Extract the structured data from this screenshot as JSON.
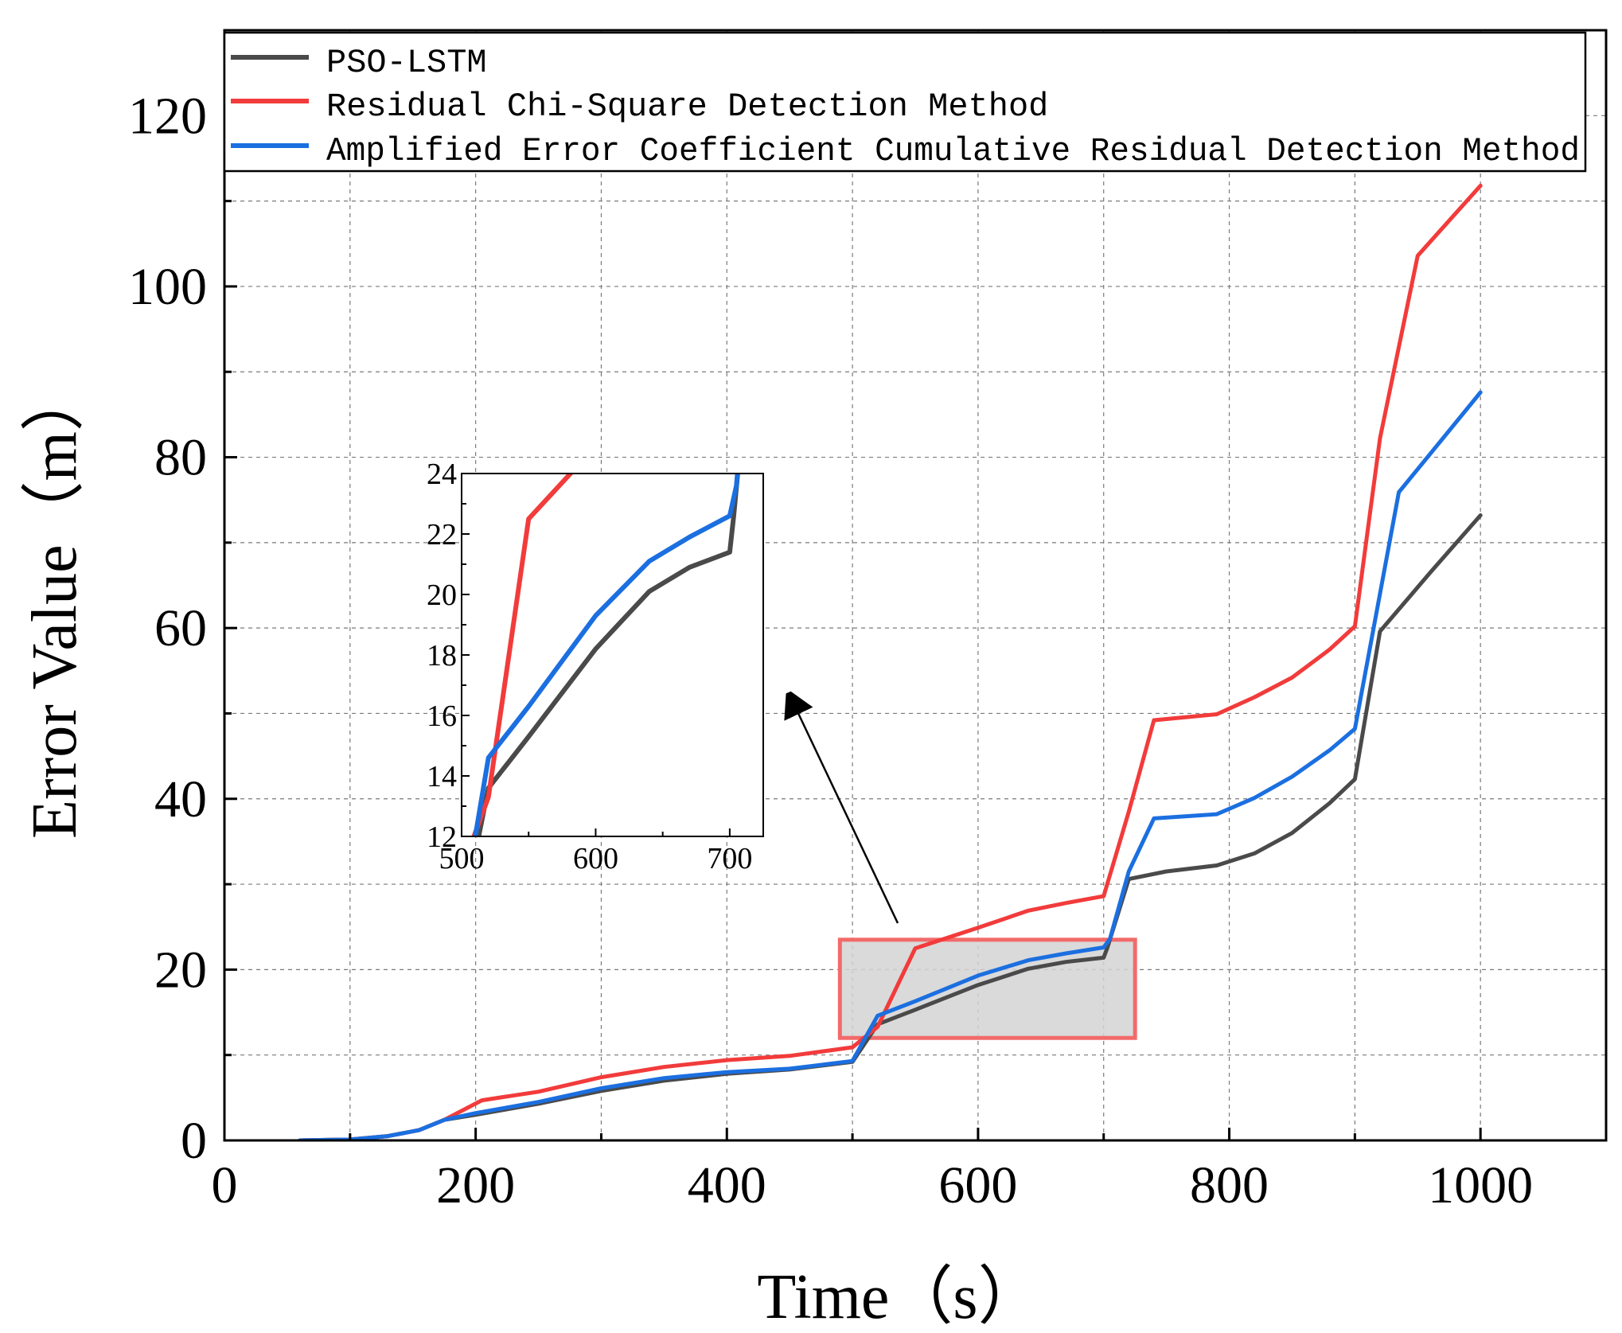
{
  "chart_data": {
    "type": "line",
    "xlabel": "Time（s）",
    "ylabel": "Error Value（m）",
    "xlim": [
      0,
      1100
    ],
    "ylim": [
      0,
      130
    ],
    "x_ticks": [
      0,
      200,
      400,
      600,
      800,
      1000
    ],
    "y_ticks": [
      0,
      20,
      40,
      60,
      80,
      100,
      120
    ],
    "grid": true,
    "legend_position": "top-left",
    "colors": {
      "PSO-LSTM": "#4a4a4a",
      "Residual Chi-Square Detection Method": "#f23b3b",
      "Amplified Error Coefficient Cumulative Residual Detection Method": "#1b6fe0"
    },
    "series": [
      {
        "name": "PSO-LSTM",
        "x": [
          60,
          100,
          130,
          155,
          175,
          200,
          250,
          300,
          350,
          400,
          450,
          500,
          520,
          550,
          600,
          640,
          670,
          700,
          703,
          720,
          750,
          790,
          820,
          850,
          880,
          900,
          920,
          960,
          1000
        ],
        "y": [
          0,
          0.1,
          0.5,
          1.2,
          2.4,
          3.0,
          4.3,
          5.8,
          7.0,
          7.8,
          8.3,
          9.2,
          13.6,
          15.3,
          18.2,
          20.1,
          20.9,
          21.4,
          22.6,
          30.6,
          31.5,
          32.2,
          33.6,
          36,
          39.5,
          42.3,
          59.6,
          66.5,
          73.2
        ]
      },
      {
        "name": "Residual Chi-Square Detection Method",
        "x": [
          60,
          100,
          130,
          155,
          175,
          205,
          250,
          300,
          350,
          400,
          450,
          500,
          520,
          550,
          600,
          640,
          670,
          700,
          720,
          740,
          790,
          820,
          850,
          880,
          900,
          920,
          950,
          1000
        ],
        "y": [
          0,
          0.1,
          0.5,
          1.2,
          2.4,
          4.7,
          5.7,
          7.4,
          8.6,
          9.4,
          9.9,
          10.9,
          13.3,
          22.5,
          24.9,
          26.9,
          27.8,
          28.6,
          38.5,
          49.2,
          49.9,
          51.9,
          54.2,
          57.5,
          60.2,
          82.2,
          103.6,
          111.8
        ]
      },
      {
        "name": "Amplified Error Coefficient Cumulative Residual Detection Method",
        "x": [
          60,
          100,
          130,
          155,
          175,
          200,
          250,
          300,
          350,
          400,
          450,
          500,
          520,
          550,
          600,
          640,
          670,
          700,
          705,
          720,
          740,
          790,
          820,
          850,
          880,
          900,
          935,
          1000
        ],
        "y": [
          0,
          0.1,
          0.5,
          1.2,
          2.4,
          3.2,
          4.5,
          6.1,
          7.3,
          8.0,
          8.4,
          9.3,
          14.6,
          16.3,
          19.3,
          21.1,
          21.9,
          22.6,
          23.6,
          31.5,
          37.7,
          38.2,
          40.1,
          42.6,
          45.7,
          48.2,
          75.9,
          87.6
        ]
      }
    ],
    "inset": {
      "xlim": [
        500,
        725
      ],
      "ylim": [
        12,
        24
      ],
      "x_ticks": [
        500,
        600,
        700
      ],
      "y_ticks": [
        12,
        14,
        16,
        18,
        20,
        22,
        24
      ],
      "highlight_region": {
        "x": [
          490,
          725
        ],
        "y": [
          12,
          23.5
        ]
      }
    }
  }
}
